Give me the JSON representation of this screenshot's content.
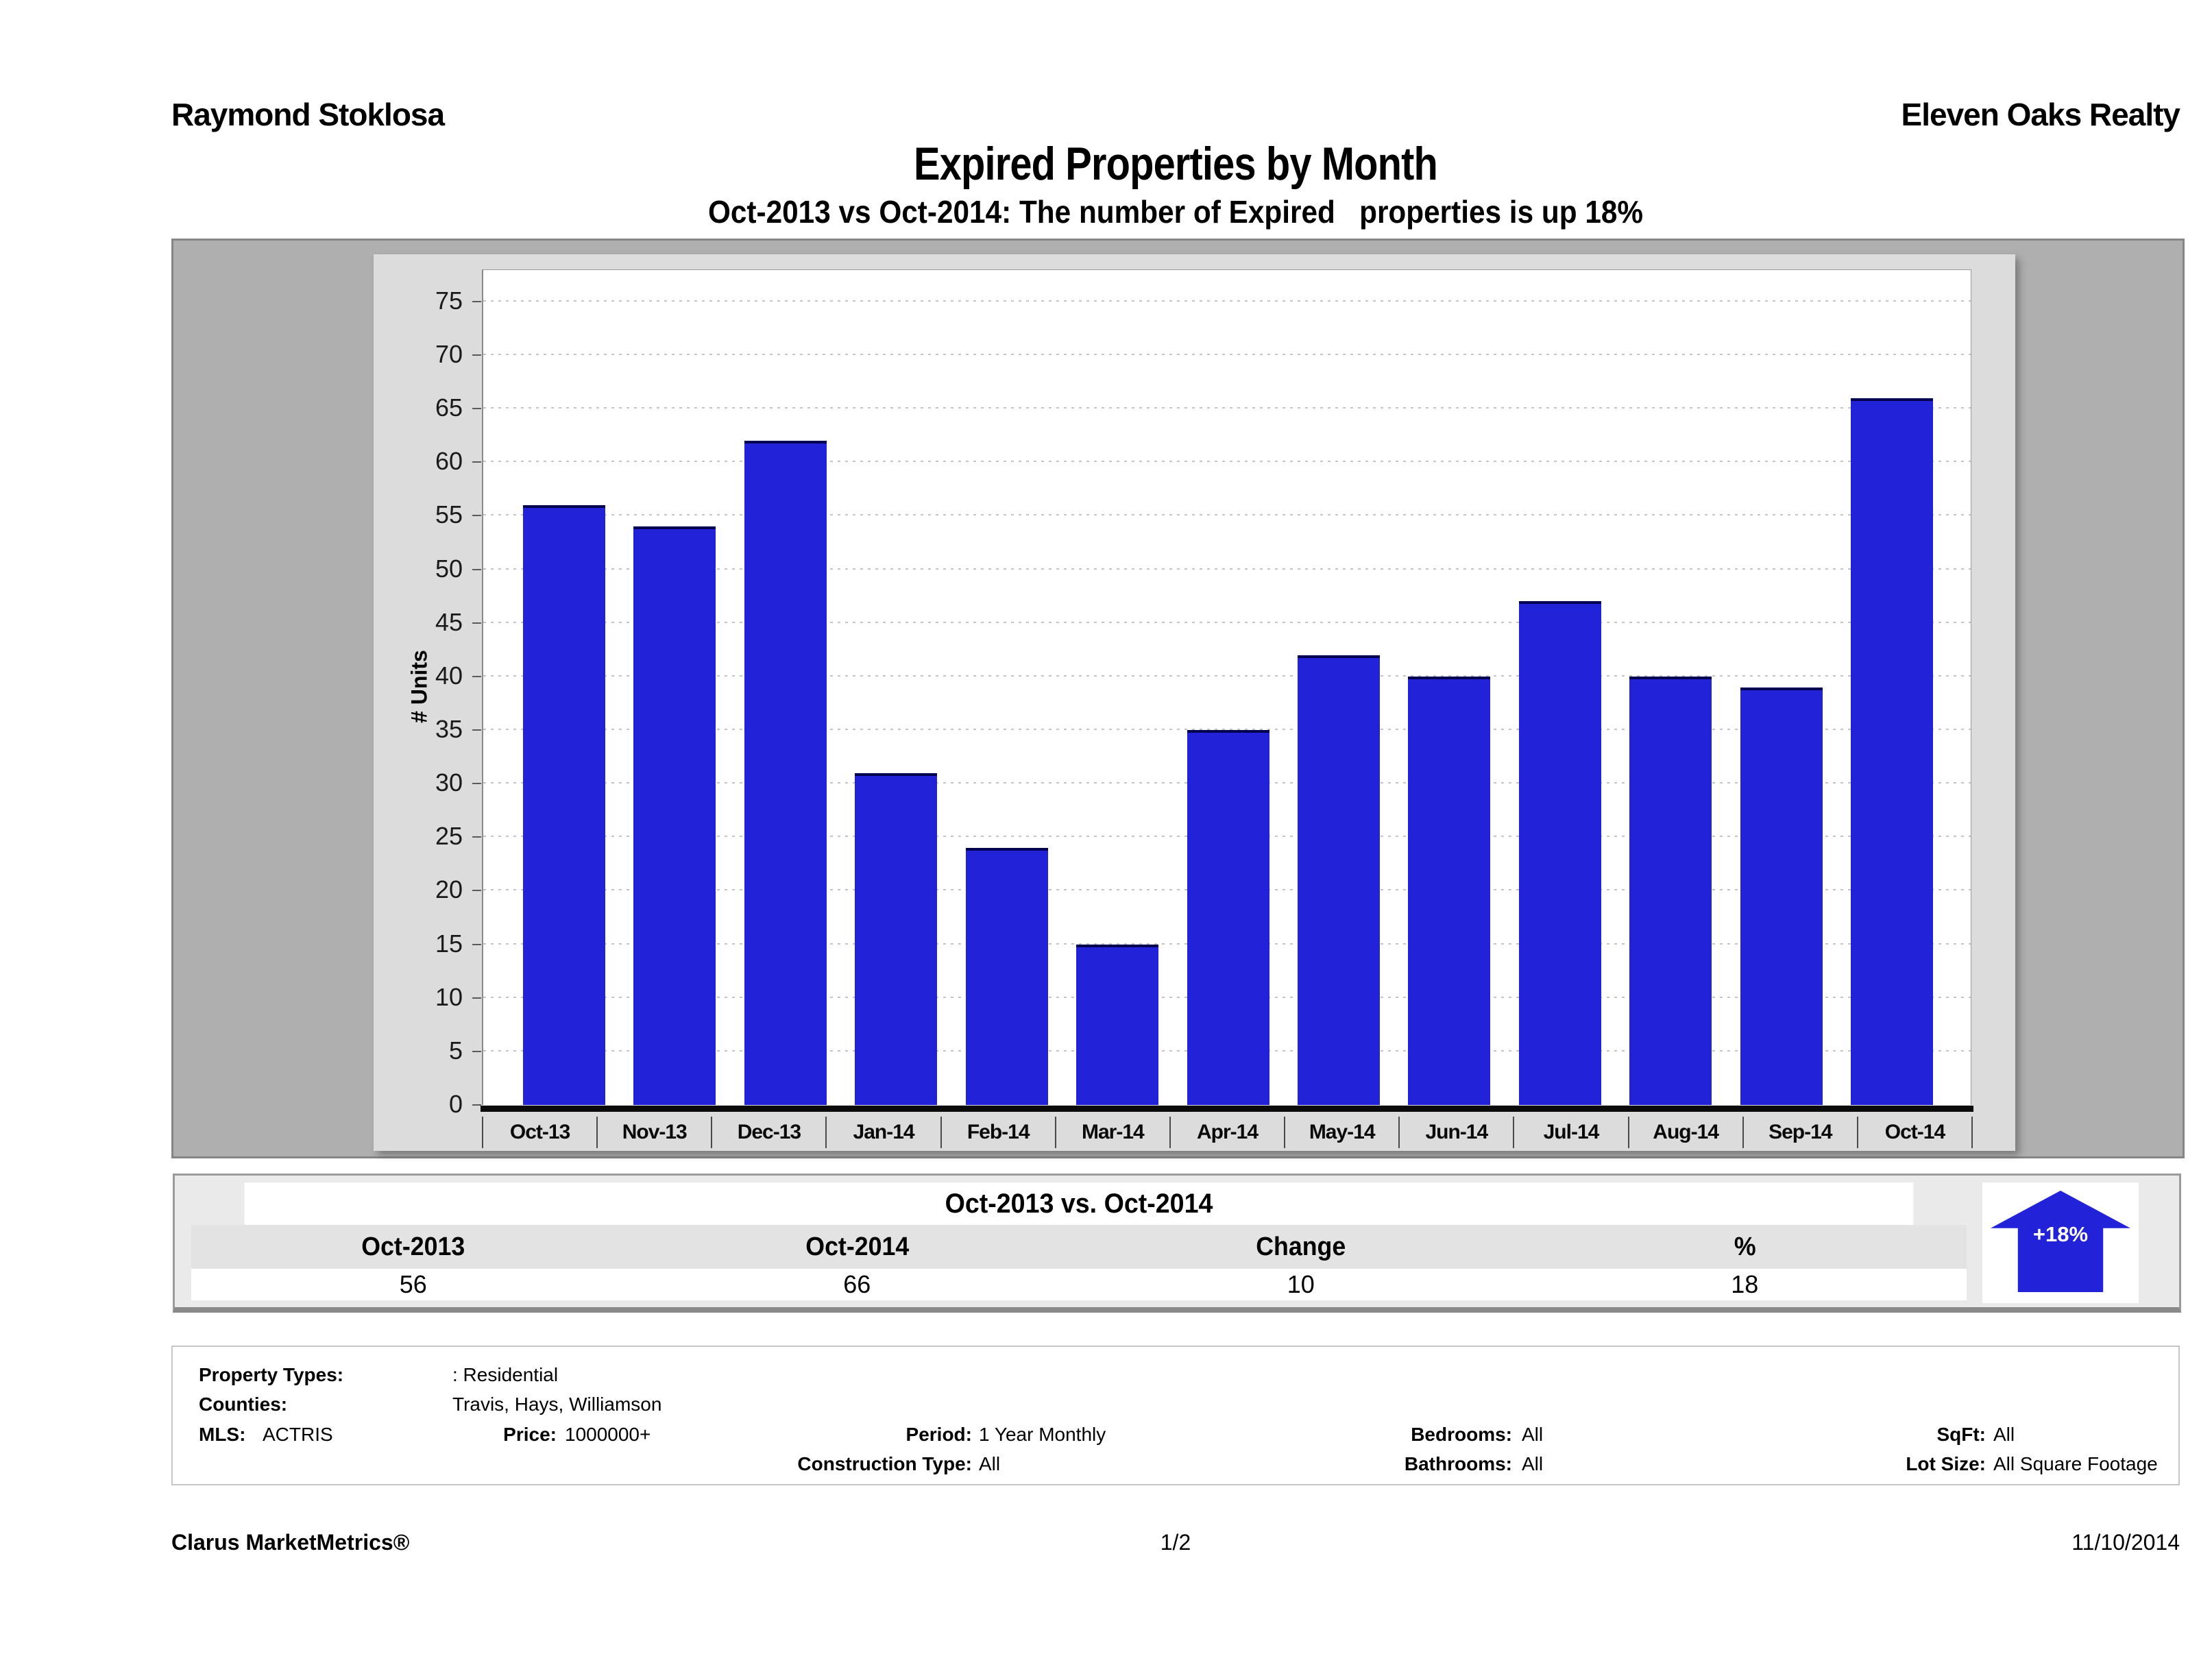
{
  "header": {
    "agent": "Raymond Stoklosa",
    "company": "Eleven Oaks Realty",
    "title": "Expired Properties by Month",
    "subtitle": "Oct-2013 vs Oct-2014: The number of Expired   properties is up 18%"
  },
  "chart_data": {
    "type": "bar",
    "title": "Expired Properties by Month",
    "categories": [
      "Oct-13",
      "Nov-13",
      "Dec-13",
      "Jan-14",
      "Feb-14",
      "Mar-14",
      "Apr-14",
      "May-14",
      "Jun-14",
      "Jul-14",
      "Aug-14",
      "Sep-14",
      "Oct-14"
    ],
    "values": [
      56,
      54,
      62,
      31,
      24,
      15,
      35,
      42,
      40,
      47,
      40,
      39,
      66
    ],
    "xlabel": "",
    "ylabel": "# Units",
    "ylim": [
      0,
      78
    ],
    "yticks": [
      0,
      5,
      10,
      15,
      20,
      25,
      30,
      35,
      40,
      45,
      50,
      55,
      60,
      65,
      70,
      75
    ],
    "grid": "horizontal-dotted",
    "legend": "none",
    "bar_color": "#2222D8",
    "bar_cap_color": "#000050",
    "gridline_color": "#C4C4C4",
    "plot_bg": "#FFFFFF",
    "panel_bg": "#DCDCDC",
    "container_bg": "#AFAFAF"
  },
  "summary_table": {
    "title": "Oct-2013 vs. Oct-2014",
    "columns": [
      "Oct-2013",
      "Oct-2014",
      "Change",
      "%"
    ],
    "values": [
      "56",
      "66",
      "10",
      "18"
    ],
    "arrow": {
      "direction": "up",
      "label": "+18%",
      "color": "#2222D8"
    }
  },
  "criteria": {
    "property_types_label": "Property Types:",
    "property_types_value": ": Residential",
    "counties_label": "Counties:",
    "counties_value": "Travis, Hays, Williamson",
    "mls_label": "MLS:",
    "mls_value": "ACTRIS",
    "price_label": "Price:",
    "price_value": "1000000+",
    "period_label": "Period:",
    "period_value": "1 Year Monthly",
    "construction_label": "Construction Type:",
    "construction_value": "All",
    "bedrooms_label": "Bedrooms:",
    "bedrooms_value": "All",
    "bathrooms_label": "Bathrooms:",
    "bathrooms_value": "All",
    "sqft_label": "SqFt:",
    "sqft_value": "All",
    "lot_size_label": "Lot Size:",
    "lot_size_value": "All Square Footage"
  },
  "footer": {
    "brand": "Clarus MarketMetrics®",
    "page_number": "1/2",
    "date": "11/10/2014"
  }
}
